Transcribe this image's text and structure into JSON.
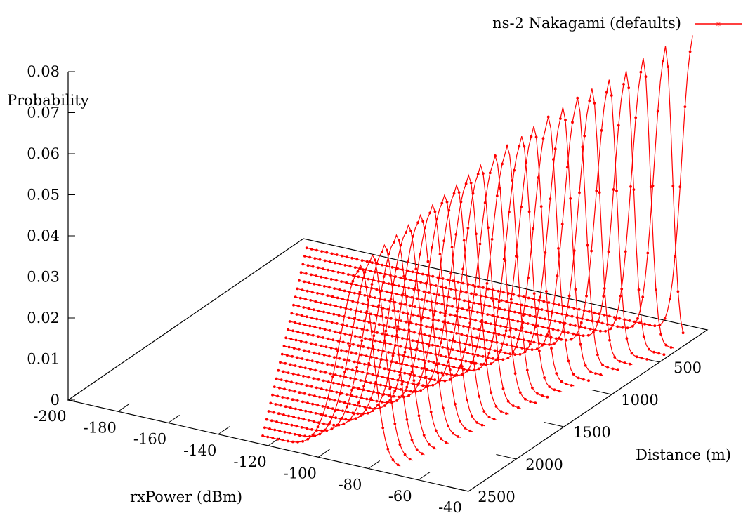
{
  "chart_data": {
    "type": "line",
    "view": "3d-surface-lines",
    "title": "",
    "zlabel": "Probability",
    "xlabel": "rxPower (dBm)",
    "ylabel": "Distance (m)",
    "legend": {
      "entries": [
        "ns-2 Nakagami (defaults)"
      ],
      "position": "top-right"
    },
    "zlim": [
      0,
      0.08
    ],
    "xlim": [
      -200,
      -40
    ],
    "ylim": [
      0,
      2500
    ],
    "z_ticks": [
      "0",
      "0.01",
      "0.02",
      "0.03",
      "0.04",
      "0.05",
      "0.06",
      "0.07",
      "0.08"
    ],
    "x_ticks": [
      "-200",
      "-180",
      "-160",
      "-140",
      "-120",
      "-100",
      "-80",
      "-60",
      "-40"
    ],
    "y_ticks": [
      "500",
      "1000",
      "1500",
      "2000",
      "2500"
    ],
    "distances": [
      100,
      200,
      300,
      400,
      500,
      600,
      700,
      800,
      900,
      1000,
      1100,
      1200,
      1300,
      1400,
      1500,
      1600,
      1700,
      1800,
      1900,
      2000,
      2100,
      2200,
      2300,
      2400
    ],
    "series_model": {
      "note": "each distance slice is a peaked distribution over rxPower",
      "peak_x": [
        -42,
        -49,
        -54,
        -57,
        -60,
        -63,
        -65,
        -67,
        -69,
        -71,
        -72,
        -74,
        -75,
        -77,
        -78,
        -79,
        -80,
        -81,
        -82,
        -83,
        -84,
        -85,
        -86,
        -87
      ],
      "peak_z": [
        0.073,
        0.071,
        0.069,
        0.067,
        0.066,
        0.065,
        0.064,
        0.063,
        0.062,
        0.061,
        0.06,
        0.059,
        0.058,
        0.057,
        0.056,
        0.055,
        0.054,
        0.053,
        0.052,
        0.051,
        0.05,
        0.049,
        0.048,
        0.047
      ],
      "spread_dBm": 6,
      "sample_step_dBm": 1
    }
  },
  "colors": {
    "series": "#ff0000",
    "axis": "#000000",
    "background": "#ffffff"
  }
}
